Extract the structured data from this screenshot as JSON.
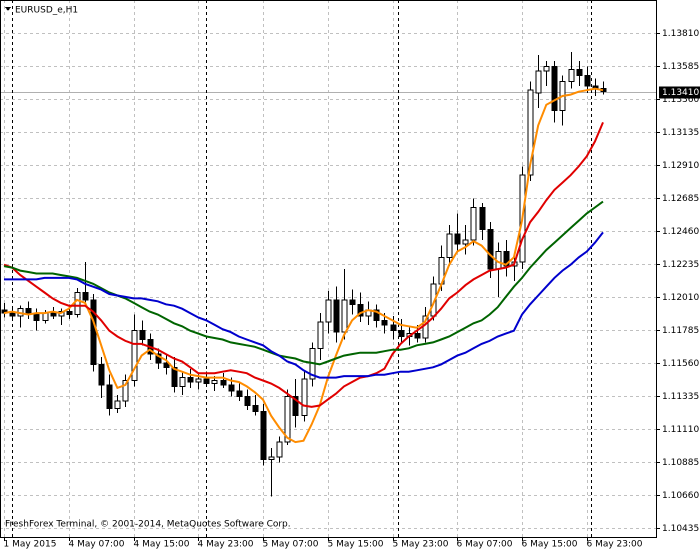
{
  "chart_data": {
    "type": "candlestick",
    "title": "EURUSD_e,H1",
    "footer": "FreshForex Terminal, © 2001-2014, MetaQuotes Software Corp.",
    "categories": [
      "1 May 2015",
      null,
      null,
      null,
      null,
      null,
      null,
      null,
      "4 May 07:00",
      null,
      null,
      null,
      null,
      null,
      null,
      null,
      "4 May 15:00",
      null,
      null,
      null,
      null,
      null,
      null,
      null,
      "4 May 23:00",
      null,
      null,
      null,
      null,
      null,
      null,
      null,
      "5 May 07:00",
      null,
      null,
      null,
      null,
      null,
      null,
      null,
      "5 May 15:00",
      null,
      null,
      null,
      null,
      null,
      null,
      null,
      "5 May 23:00",
      null,
      null,
      null,
      null,
      null,
      null,
      null,
      "6 May 07:00",
      null,
      null,
      null,
      null,
      null,
      null,
      null,
      "6 May 15:00",
      null,
      null,
      null,
      null,
      null,
      null,
      null,
      "6 May 23:00",
      null,
      null
    ],
    "candles": {
      "open": [
        1.1192,
        1.119,
        1.1188,
        1.1193,
        1.1189,
        1.1185,
        1.119,
        1.1188,
        1.1191,
        1.1189,
        1.1204,
        1.1199,
        1.1155,
        1.1141,
        1.1125,
        1.113,
        1.1144,
        1.1178,
        1.1172,
        1.1162,
        1.1156,
        1.1153,
        1.114,
        1.1146,
        1.1143,
        1.1145,
        1.1142,
        1.1144,
        1.1141,
        1.1137,
        1.1133,
        1.1127,
        1.1123,
        1.109,
        1.1092,
        1.1102,
        1.1133,
        1.112,
        1.1145,
        1.1166,
        1.1184,
        1.1199,
        1.1177,
        1.1199,
        1.1196,
        1.1188,
        1.1192,
        1.1185,
        1.1182,
        1.1178,
        1.1174,
        1.1176,
        1.1173,
        1.1188,
        1.121,
        1.1228,
        1.1244,
        1.1237,
        1.124,
        1.1262,
        1.1247,
        1.122,
        1.1232,
        1.1222,
        1.1225,
        1.1284,
        1.134,
        1.1355,
        1.1358,
        1.1328,
        1.1348,
        1.1356,
        1.1352,
        1.1345,
        1.1343
      ],
      "high": [
        1.1197,
        1.1194,
        1.1195,
        1.1198,
        1.1193,
        1.1192,
        1.1194,
        1.1193,
        1.1196,
        1.1207,
        1.1225,
        1.1203,
        1.116,
        1.1148,
        1.1134,
        1.1148,
        1.1189,
        1.1185,
        1.1176,
        1.1166,
        1.1162,
        1.116,
        1.115,
        1.1152,
        1.1148,
        1.115,
        1.1147,
        1.1149,
        1.1146,
        1.1142,
        1.1138,
        1.1134,
        1.1128,
        1.1098,
        1.1106,
        1.1138,
        1.1145,
        1.115,
        1.117,
        1.119,
        1.1205,
        1.1208,
        1.122,
        1.1206,
        1.1204,
        1.1198,
        1.1196,
        1.119,
        1.1188,
        1.1186,
        1.118,
        1.1182,
        1.1194,
        1.1215,
        1.1236,
        1.125,
        1.1258,
        1.125,
        1.1268,
        1.1265,
        1.1252,
        1.1238,
        1.124,
        1.1228,
        1.129,
        1.1348,
        1.1366,
        1.1362,
        1.1362,
        1.1352,
        1.1368,
        1.1362,
        1.1358,
        1.135,
        1.1348
      ],
      "low": [
        1.1187,
        1.1185,
        1.118,
        1.1186,
        1.1178,
        1.1183,
        1.1186,
        1.1182,
        1.1186,
        1.1187,
        1.1196,
        1.115,
        1.1132,
        1.112,
        1.1122,
        1.1126,
        1.114,
        1.1168,
        1.1158,
        1.1152,
        1.1148,
        1.1136,
        1.1134,
        1.1139,
        1.1138,
        1.114,
        1.1137,
        1.1139,
        1.1133,
        1.113,
        1.1124,
        1.112,
        1.1086,
        1.1065,
        1.1088,
        1.11,
        1.1112,
        1.1116,
        1.114,
        1.1158,
        1.1176,
        1.117,
        1.1172,
        1.1189,
        1.1184,
        1.1182,
        1.118,
        1.1176,
        1.1172,
        1.117,
        1.1168,
        1.117,
        1.117,
        1.1185,
        1.1205,
        1.1222,
        1.1232,
        1.123,
        1.1236,
        1.124,
        1.1214,
        1.1201,
        1.1215,
        1.1212,
        1.122,
        1.128,
        1.133,
        1.1345,
        1.132,
        1.1318,
        1.1343,
        1.1345,
        1.134,
        1.1338,
        1.1339
      ],
      "close": [
        1.119,
        1.1188,
        1.1193,
        1.1189,
        1.1185,
        1.119,
        1.1188,
        1.1191,
        1.1189,
        1.1204,
        1.1199,
        1.1155,
        1.1141,
        1.1125,
        1.113,
        1.1144,
        1.1178,
        1.1172,
        1.1162,
        1.1156,
        1.1153,
        1.114,
        1.1146,
        1.1143,
        1.1145,
        1.1142,
        1.1144,
        1.1141,
        1.1137,
        1.1133,
        1.1127,
        1.1123,
        1.109,
        1.1092,
        1.1102,
        1.1133,
        1.112,
        1.1145,
        1.1166,
        1.1184,
        1.1199,
        1.1177,
        1.1199,
        1.1196,
        1.1188,
        1.1192,
        1.1185,
        1.1182,
        1.1178,
        1.1174,
        1.1176,
        1.1173,
        1.1188,
        1.121,
        1.1228,
        1.1244,
        1.1237,
        1.124,
        1.1262,
        1.1247,
        1.122,
        1.1232,
        1.1222,
        1.1225,
        1.1284,
        1.1342,
        1.1355,
        1.1358,
        1.1328,
        1.1348,
        1.1356,
        1.1352,
        1.1345,
        1.1343,
        1.1341
      ]
    },
    "series": [
      {
        "color": "#ff8c00",
        "values": [
          1.119,
          1.1191,
          1.119,
          1.1189,
          1.119,
          1.119,
          1.1191,
          1.119,
          1.1193,
          1.1199,
          1.1197,
          1.1185,
          1.1168,
          1.1151,
          1.1139,
          1.1141,
          1.1151,
          1.1161,
          1.1165,
          1.1161,
          1.1158,
          1.1152,
          1.115,
          1.1148,
          1.1147,
          1.1146,
          1.1146,
          1.1146,
          1.1144,
          1.1143,
          1.114,
          1.1136,
          1.1131,
          1.112,
          1.1112,
          1.1105,
          1.1102,
          1.1103,
          1.1114,
          1.1127,
          1.1146,
          1.1161,
          1.1175,
          1.1185,
          1.119,
          1.1192,
          1.1191,
          1.1188,
          1.1185,
          1.1182,
          1.1181,
          1.118,
          1.1184,
          1.1196,
          1.1209,
          1.1223,
          1.1232,
          1.1235,
          1.1239,
          1.1236,
          1.123,
          1.1225,
          1.1223,
          1.1228,
          1.1253,
          1.1291,
          1.1318,
          1.1332,
          1.1335,
          1.1338,
          1.1339,
          1.1341,
          1.1342,
          1.1343,
          1.1342
        ]
      },
      {
        "color": "#e00000",
        "values": [
          1.1223,
          1.1221,
          1.1216,
          1.1212,
          1.1208,
          1.1204,
          1.12,
          1.1197,
          1.1195,
          1.1195,
          1.1195,
          1.1191,
          1.1185,
          1.1178,
          1.1174,
          1.1171,
          1.1169,
          1.1169,
          1.1167,
          1.1165,
          1.1162,
          1.1159,
          1.1157,
          1.1153,
          1.1149,
          1.1149,
          1.1149,
          1.115,
          1.1151,
          1.115,
          1.1149,
          1.1146,
          1.1144,
          1.1142,
          1.1139,
          1.1135,
          1.1131,
          1.1127,
          1.1126,
          1.1127,
          1.1131,
          1.1135,
          1.114,
          1.1143,
          1.1146,
          1.1147,
          1.1149,
          1.1152,
          1.1162,
          1.1169,
          1.1174,
          1.1178,
          1.1182,
          1.1187,
          1.1193,
          1.12,
          1.1204,
          1.1209,
          1.1213,
          1.1216,
          1.1219,
          1.122,
          1.1221,
          1.1223,
          1.124,
          1.1252,
          1.1259,
          1.1267,
          1.1274,
          1.1279,
          1.1284,
          1.129,
          1.1297,
          1.1307,
          1.132
        ]
      },
      {
        "color": "#006400",
        "values": [
          1.1222,
          1.1221,
          1.1219,
          1.1218,
          1.1217,
          1.1217,
          1.1217,
          1.1216,
          1.1215,
          1.1214,
          1.1212,
          1.121,
          1.1207,
          1.1204,
          1.1202,
          1.12,
          1.1197,
          1.1194,
          1.1191,
          1.1189,
          1.1186,
          1.1183,
          1.1181,
          1.1178,
          1.1176,
          1.1174,
          1.1173,
          1.1172,
          1.117,
          1.1169,
          1.1168,
          1.1167,
          1.1165,
          1.1163,
          1.1161,
          1.116,
          1.1159,
          1.1157,
          1.1156,
          1.1155,
          1.1157,
          1.1159,
          1.1161,
          1.1162,
          1.1163,
          1.1163,
          1.1163,
          1.1164,
          1.1165,
          1.1165,
          1.1166,
          1.1168,
          1.1169,
          1.117,
          1.1172,
          1.1174,
          1.1177,
          1.118,
          1.1183,
          1.1185,
          1.1189,
          1.1194,
          1.1201,
          1.1208,
          1.1214,
          1.1221,
          1.1227,
          1.1233,
          1.1238,
          1.1243,
          1.1248,
          1.1253,
          1.1258,
          1.1262,
          1.1266
        ]
      },
      {
        "color": "#0000cd",
        "values": [
          1.1213,
          1.1213,
          1.1213,
          1.1213,
          1.1213,
          1.1214,
          1.1214,
          1.1214,
          1.1214,
          1.1213,
          1.121,
          1.1208,
          1.1206,
          1.1203,
          1.1202,
          1.1201,
          1.12,
          1.12,
          1.1199,
          1.1198,
          1.1196,
          1.1195,
          1.1193,
          1.119,
          1.1187,
          1.1185,
          1.1182,
          1.1179,
          1.1177,
          1.1174,
          1.1172,
          1.117,
          1.1168,
          1.1164,
          1.1161,
          1.1157,
          1.1155,
          1.1151,
          1.1148,
          1.1146,
          1.1146,
          1.1146,
          1.1147,
          1.1147,
          1.1147,
          1.1147,
          1.1148,
          1.1148,
          1.1149,
          1.115,
          1.115,
          1.1151,
          1.1152,
          1.1153,
          1.1155,
          1.1158,
          1.1161,
          1.1163,
          1.1166,
          1.1169,
          1.1171,
          1.1174,
          1.1176,
          1.1178,
          1.1189,
          1.1196,
          1.1202,
          1.1208,
          1.1214,
          1.1219,
          1.1223,
          1.1228,
          1.1232,
          1.1238,
          1.1245
        ]
      }
    ],
    "current_price": {
      "value": 1.1341,
      "label": "1.13410"
    },
    "ylim": [
      1.10373,
      1.14035
    ],
    "yticks": [
      {
        "value": 1.1381,
        "label": "1.13810"
      },
      1.13585,
      {
        "value": 1.1336,
        "label": "1.13360"
      },
      1.13135,
      {
        "value": 1.1291,
        "label": "1.12910"
      },
      1.12685,
      {
        "value": 1.1246,
        "label": "1.12460"
      },
      1.12235,
      {
        "value": 1.1201,
        "label": "1.12010"
      },
      1.11785,
      {
        "value": 1.1156,
        "label": "1.11560"
      },
      1.11335,
      {
        "value": 1.1111,
        "label": "1.11110"
      },
      1.10885,
      {
        "value": 1.1066,
        "label": "1.10660"
      },
      1.10435
    ],
    "grid": true
  }
}
